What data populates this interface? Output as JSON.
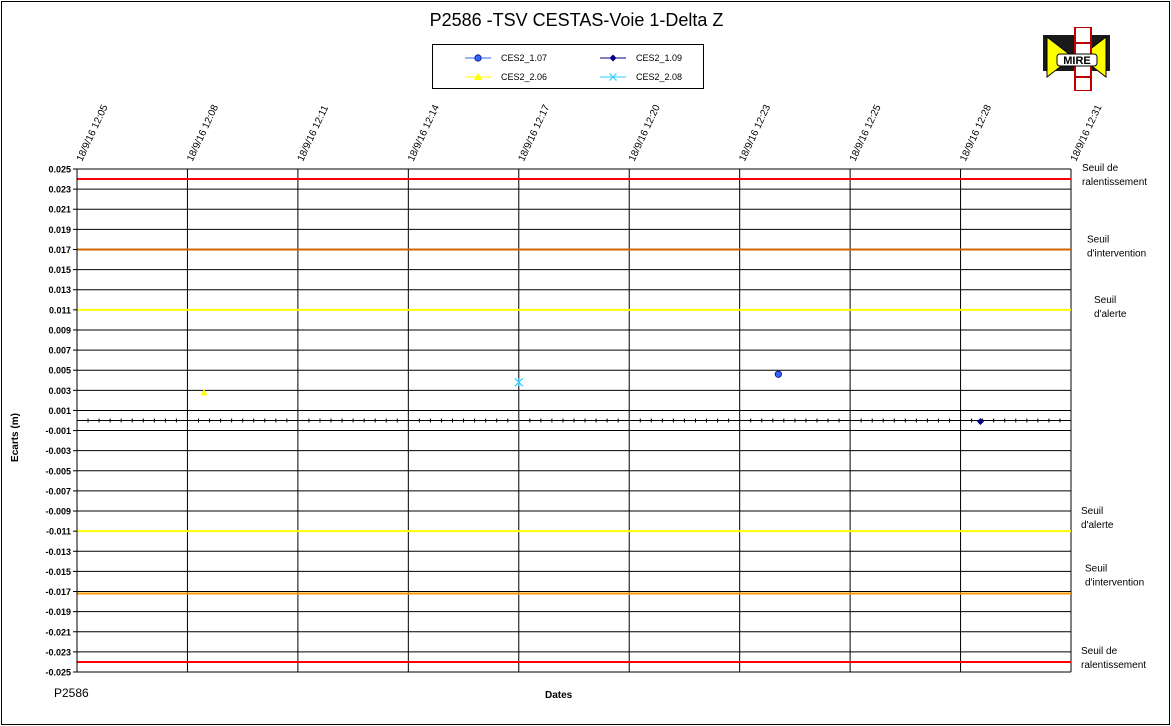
{
  "chart_data": {
    "type": "scatter",
    "title": "P2586 -TSV CESTAS-Voie  1-Delta  Z",
    "xlabel": "Dates",
    "ylabel": "Ecarts (m)",
    "ylim": [
      -0.025,
      0.025
    ],
    "x_tick_labels": [
      "18/9/16 12:05",
      "18/9/16 12:08",
      "18/9/16 12:11",
      "18/9/16 12:14",
      "18/9/16 12:17",
      "18/9/16 12:20",
      "18/9/16 12:23",
      "18/9/16 12:25",
      "18/9/16 12:28",
      "18/9/16 12:31"
    ],
    "y_tick_labels": [
      "0.025",
      "0.023",
      "0.021",
      "0.019",
      "0.017",
      "0.015",
      "0.013",
      "0.011",
      "0.009",
      "0.007",
      "0.005",
      "0.003",
      "0.001",
      "-0.001",
      "-0.003",
      "-0.005",
      "-0.007",
      "-0.009",
      "-0.011",
      "-0.013",
      "-0.015",
      "-0.017",
      "-0.019",
      "-0.021",
      "-0.023",
      "-0.025"
    ],
    "grid": true,
    "legend_position": "top-center",
    "series": [
      {
        "name": "CES2_1.07",
        "marker": "circle",
        "color": "#3366ff",
        "points": [
          {
            "x_index": 6.35,
            "y": 0.0046
          }
        ]
      },
      {
        "name": "CES2_1.09",
        "marker": "diamond",
        "color": "#000080",
        "points": [
          {
            "x_index": 8.18,
            "y": -0.0001
          }
        ]
      },
      {
        "name": "CES2_2.06",
        "marker": "triangle",
        "color": "#ffff00",
        "points": [
          {
            "x_index": 1.15,
            "y": 0.0028
          }
        ]
      },
      {
        "name": "CES2_2.08",
        "marker": "star",
        "color": "#33ccff",
        "points": [
          {
            "x_index": 4.0,
            "y": 0.0038
          }
        ]
      }
    ],
    "thresholds": [
      {
        "label": "Seuil de ralentissement",
        "y": 0.024,
        "color": "#ff0000"
      },
      {
        "label": "Seuil d'intervention",
        "y": 0.017,
        "color": "#cc6600"
      },
      {
        "label": "Seuil d'alerte",
        "y": 0.011,
        "color": "#ffff00"
      },
      {
        "label": "Seuil d'alerte",
        "y": -0.011,
        "color": "#ffff00"
      },
      {
        "label": "Seuil d'intervention",
        "y": -0.0172,
        "color": "#ff9900"
      },
      {
        "label": "Seuil de ralentissement",
        "y": -0.024,
        "color": "#ff0000"
      }
    ]
  },
  "legend": {
    "items": [
      {
        "label": "CES2_1.07"
      },
      {
        "label": "CES2_1.09"
      },
      {
        "label": "CES2_2.06"
      },
      {
        "label": "CES2_2.08"
      }
    ]
  },
  "threshold_labels": [
    {
      "line1": "Seuil  de",
      "line2": "ralentissement"
    },
    {
      "line1": "Seuil",
      "line2": "d'intervention"
    },
    {
      "line1": "Seuil",
      "line2": "d'alerte"
    },
    {
      "line1": "Seuil",
      "line2": "d'alerte"
    },
    {
      "line1": "Seuil",
      "line2": "d'intervention"
    },
    {
      "line1": "Seuil  de",
      "line2": "ralentissement"
    }
  ],
  "logo": {
    "text": "MIRE"
  },
  "footer": {
    "page_ref": "P2586"
  }
}
